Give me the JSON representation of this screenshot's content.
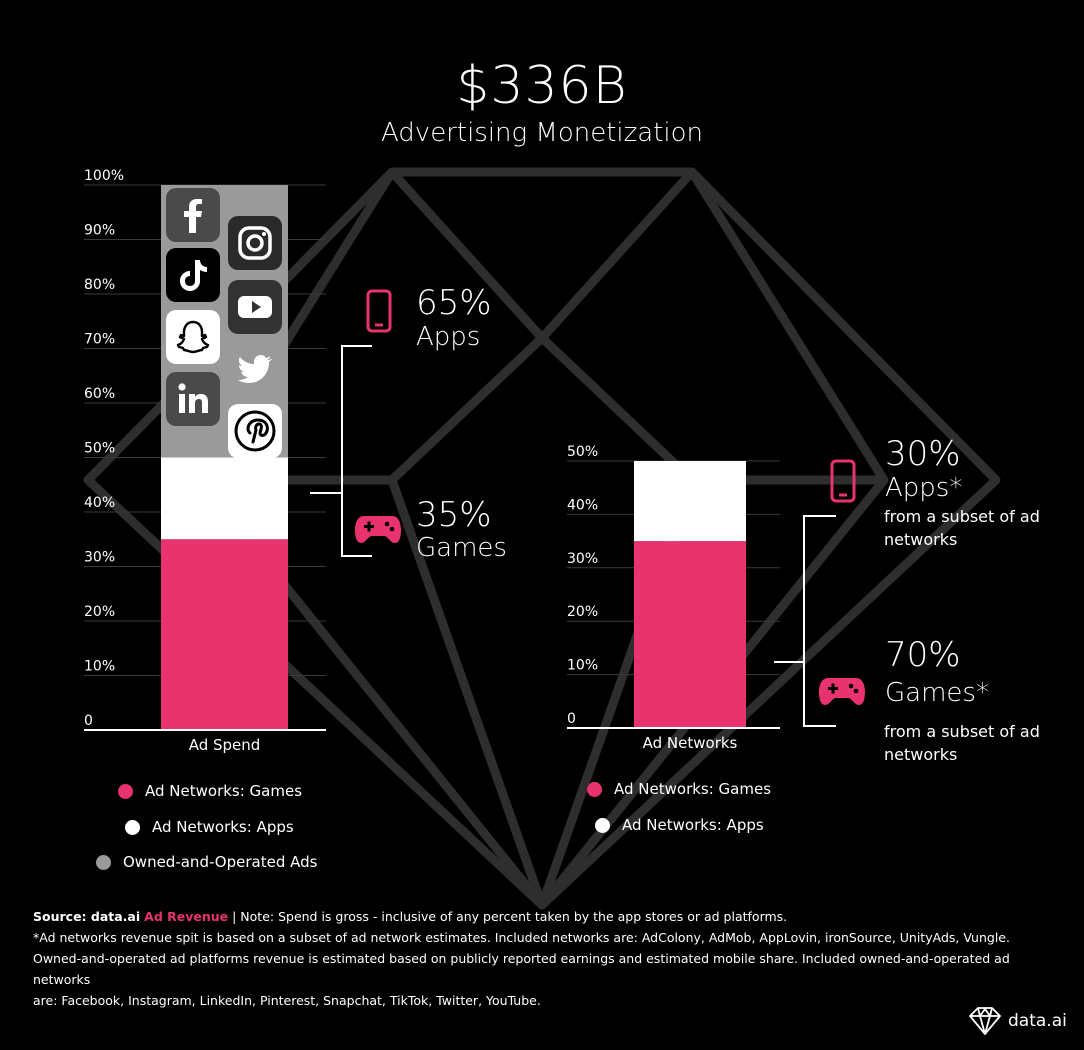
{
  "title": "$336B",
  "subtitle": "Advertising Monetization",
  "colors": {
    "pink": "#e8336e",
    "white": "#ffffff",
    "gray": "#9a9a9a",
    "line": "#2e2e2e"
  },
  "chart_data": [
    {
      "type": "bar",
      "stacked": true,
      "categories": [
        "Ad Spend"
      ],
      "series": [
        {
          "name": "Ad Networks: Games",
          "values": [
            35
          ],
          "color": "#e8336e"
        },
        {
          "name": "Ad Networks: Apps",
          "values": [
            15
          ],
          "color": "#ffffff"
        },
        {
          "name": "Owned-and-Operated Ads",
          "values": [
            50
          ],
          "color": "#9a9a9a"
        }
      ],
      "yticks": [
        "0",
        "10%",
        "20%",
        "30%",
        "40%",
        "50%",
        "60%",
        "70%",
        "80%",
        "90%",
        "100%"
      ],
      "ylim": [
        0,
        100
      ],
      "grid": true,
      "legend": "bottom"
    },
    {
      "type": "bar",
      "stacked": true,
      "categories": [
        "Ad Networks"
      ],
      "series": [
        {
          "name": "Ad Networks: Games",
          "values": [
            35
          ],
          "color": "#e8336e"
        },
        {
          "name": "Ad Networks: Apps",
          "values": [
            15
          ],
          "color": "#ffffff"
        }
      ],
      "yticks": [
        "0",
        "10%",
        "20%",
        "30%",
        "40%",
        "50%"
      ],
      "ylim": [
        0,
        50
      ],
      "grid": true,
      "legend": "bottom"
    }
  ],
  "left_annotations": {
    "apps_pct": "65%",
    "apps_label": "Apps",
    "games_pct": "35%",
    "games_label": "Games"
  },
  "right_annotations": {
    "apps_pct": "30%",
    "apps_label": "Apps*",
    "apps_sub": "from a subset of ad networks",
    "games_pct": "70%",
    "games_label": "Games*",
    "games_sub": "from a subset of ad networks"
  },
  "left_legend": [
    "Ad Networks: Games",
    "Ad Networks: Apps",
    "Owned-and-Operated Ads"
  ],
  "right_legend": [
    "Ad Networks: Games",
    "Ad Networks: Apps"
  ],
  "platform_icons": [
    "facebook-icon",
    "instagram-icon",
    "tiktok-icon",
    "youtube-icon",
    "snapchat-icon",
    "twitter-icon",
    "linkedin-icon",
    "pinterest-icon"
  ],
  "footer": {
    "source_label": "Source: data.ai",
    "source_link": "Ad Revenue",
    "note": "| Note: Spend is gross - inclusive of any percent taken by the app stores or ad platforms.",
    "line2": "*Ad networks revenue spit is based on a subset of ad network estimates. Included networks are: AdColony, AdMob, AppLovin, ironSource, UnityAds, Vungle.",
    "line3": "Owned-and-operated ad platforms revenue is estimated based on publicly reported earnings and estimated mobile share. Included owned-and-operated ad networks",
    "line4": "are: Facebook, Instagram,  LinkedIn, Pinterest, Snapchat, TikTok, Twitter, YouTube."
  },
  "brand": "data.ai"
}
